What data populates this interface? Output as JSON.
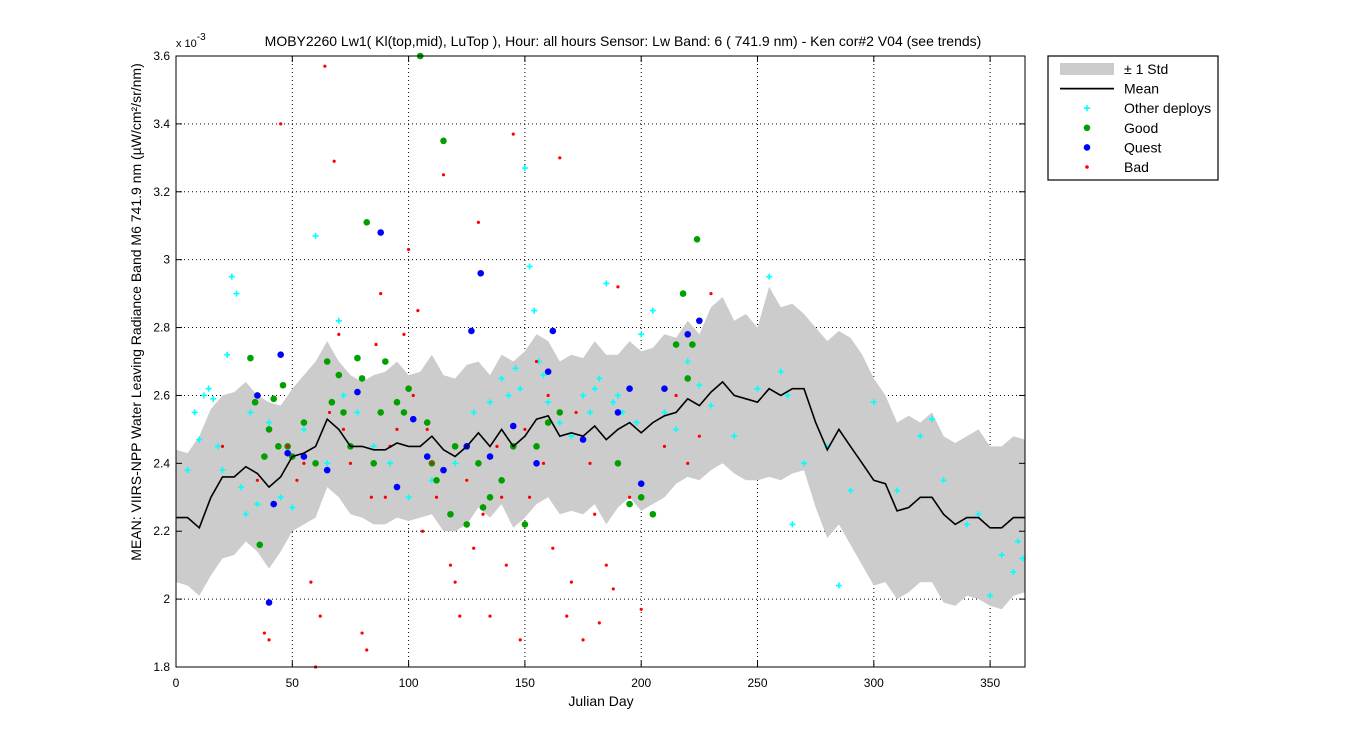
{
  "chart_data": {
    "type": "scatter",
    "title": "MOBY2260   Lw1( Kl(top,mid), LuTop ),   Hour: all hours  Sensor: Lw Band: 6 ( 741.9 nm)  - Ken cor#2 V04 (see trends)",
    "xlabel": "Julian Day",
    "ylabel": "MEAN: VIIRS-NPP Water Leaving Radiance Band M6 741.9 nm (µW/cm²/sr/nm)",
    "y_exponent_label": "x 10",
    "y_exponent_power": "-3",
    "xlim": [
      0,
      365
    ],
    "ylim": [
      1.8,
      3.6
    ],
    "x_ticks": [
      0,
      50,
      100,
      150,
      200,
      250,
      300,
      350
    ],
    "x_tick_labels": [
      "0",
      "50",
      "100",
      "150",
      "200",
      "250",
      "300",
      "350"
    ],
    "y_ticks": [
      1.8,
      2.0,
      2.2,
      2.4,
      2.6,
      2.8,
      3.0,
      3.2,
      3.4,
      3.6
    ],
    "y_tick_labels": [
      "1.8",
      "2",
      "2.2",
      "2.4",
      "2.6",
      "2.8",
      "3",
      "3.2",
      "3.4",
      "3.6"
    ],
    "grid": true,
    "legend_position": "outside-top-right",
    "legend": [
      {
        "label": "± 1 Std",
        "kind": "band",
        "color": "#cccccc"
      },
      {
        "label": "Mean",
        "kind": "line",
        "color": "#000000"
      },
      {
        "label": "Other deploys",
        "kind": "plus",
        "color": "#00ffff"
      },
      {
        "label": "Good",
        "kind": "dot",
        "color": "#00a000"
      },
      {
        "label": "Quest",
        "kind": "dot",
        "color": "#0000ff"
      },
      {
        "label": "Bad",
        "kind": "dot-small",
        "color": "#ff0000"
      }
    ],
    "mean_series": {
      "name": "Mean",
      "x": [
        0,
        5,
        10,
        15,
        20,
        25,
        30,
        35,
        40,
        45,
        50,
        55,
        60,
        65,
        70,
        75,
        80,
        85,
        90,
        95,
        100,
        105,
        110,
        115,
        120,
        125,
        130,
        135,
        140,
        145,
        150,
        155,
        160,
        165,
        170,
        175,
        180,
        185,
        190,
        195,
        200,
        205,
        210,
        215,
        220,
        225,
        230,
        235,
        240,
        245,
        250,
        255,
        260,
        265,
        270,
        275,
        280,
        285,
        290,
        295,
        300,
        305,
        310,
        315,
        320,
        325,
        330,
        335,
        340,
        345,
        350,
        355,
        360,
        365
      ],
      "y": [
        2.24,
        2.24,
        2.21,
        2.3,
        2.36,
        2.36,
        2.39,
        2.37,
        2.33,
        2.36,
        2.42,
        2.43,
        2.45,
        2.53,
        2.5,
        2.45,
        2.45,
        2.44,
        2.44,
        2.46,
        2.45,
        2.45,
        2.48,
        2.44,
        2.42,
        2.45,
        2.49,
        2.45,
        2.5,
        2.45,
        2.48,
        2.53,
        2.54,
        2.48,
        2.49,
        2.48,
        2.51,
        2.47,
        2.5,
        2.52,
        2.49,
        2.52,
        2.54,
        2.55,
        2.59,
        2.57,
        2.61,
        2.64,
        2.6,
        2.59,
        2.58,
        2.62,
        2.6,
        2.62,
        2.62,
        2.52,
        2.44,
        2.5,
        2.45,
        2.4,
        2.35,
        2.34,
        2.26,
        2.27,
        2.3,
        2.3,
        2.25,
        2.22,
        2.24,
        2.24,
        2.21,
        2.21,
        2.24,
        2.24
      ]
    },
    "std_upper": [
      2.44,
      2.43,
      2.48,
      2.56,
      2.6,
      2.61,
      2.64,
      2.6,
      2.58,
      2.57,
      2.62,
      2.66,
      2.7,
      2.76,
      2.7,
      2.66,
      2.64,
      2.66,
      2.67,
      2.7,
      2.66,
      2.67,
      2.72,
      2.66,
      2.65,
      2.69,
      2.7,
      2.66,
      2.72,
      2.7,
      2.73,
      2.78,
      2.76,
      2.7,
      2.72,
      2.71,
      2.76,
      2.72,
      2.72,
      2.76,
      2.73,
      2.74,
      2.78,
      2.77,
      2.82,
      2.78,
      2.86,
      2.89,
      2.82,
      2.84,
      2.8,
      2.92,
      2.86,
      2.87,
      2.84,
      2.8,
      2.76,
      2.79,
      2.77,
      2.72,
      2.65,
      2.6,
      2.52,
      2.54,
      2.52,
      2.55,
      2.48,
      2.46,
      2.48,
      2.5,
      2.45,
      2.45,
      2.48,
      2.47
    ],
    "std_lower": [
      2.05,
      2.04,
      2.01,
      2.07,
      2.12,
      2.13,
      2.17,
      2.14,
      2.09,
      2.14,
      2.2,
      2.22,
      2.24,
      2.33,
      2.3,
      2.25,
      2.24,
      2.22,
      2.22,
      2.24,
      2.23,
      2.24,
      2.25,
      2.2,
      2.2,
      2.22,
      2.27,
      2.24,
      2.28,
      2.21,
      2.24,
      2.28,
      2.3,
      2.25,
      2.26,
      2.25,
      2.28,
      2.22,
      2.27,
      2.3,
      2.26,
      2.28,
      2.3,
      2.34,
      2.36,
      2.35,
      2.38,
      2.4,
      2.37,
      2.35,
      2.35,
      2.36,
      2.35,
      2.37,
      2.38,
      2.27,
      2.18,
      2.22,
      2.16,
      2.1,
      2.04,
      2.05,
      2.0,
      2.02,
      2.05,
      2.05,
      1.99,
      1.98,
      2.01,
      2.0,
      1.98,
      1.97,
      2.01,
      2.02
    ],
    "series": [
      {
        "name": "Other deploys",
        "marker": "plus",
        "color": "#00ffff",
        "x": [
          5,
          8,
          10,
          12,
          14,
          16,
          18,
          20,
          22,
          24,
          26,
          28,
          30,
          32,
          35,
          40,
          45,
          50,
          55,
          60,
          65,
          70,
          72,
          78,
          85,
          92,
          100,
          110,
          120,
          128,
          135,
          140,
          143,
          146,
          148,
          150,
          152,
          154,
          156,
          158,
          160,
          165,
          170,
          175,
          178,
          180,
          182,
          185,
          188,
          190,
          192,
          195,
          198,
          200,
          205,
          210,
          215,
          220,
          225,
          230,
          240,
          250,
          255,
          260,
          263,
          265,
          270,
          280,
          285,
          290,
          300,
          310,
          320,
          325,
          330,
          340,
          345,
          350,
          355,
          360,
          362,
          364
        ],
        "y": [
          2.38,
          2.55,
          2.47,
          2.6,
          2.62,
          2.59,
          2.45,
          2.38,
          2.72,
          2.95,
          2.9,
          2.33,
          2.25,
          2.55,
          2.28,
          2.52,
          2.3,
          2.27,
          2.5,
          3.07,
          2.4,
          2.82,
          2.6,
          2.55,
          2.45,
          2.4,
          2.3,
          2.35,
          2.4,
          2.55,
          2.58,
          2.65,
          2.6,
          2.68,
          2.62,
          3.27,
          2.98,
          2.85,
          2.7,
          2.66,
          2.58,
          2.52,
          2.48,
          2.6,
          2.55,
          2.62,
          2.65,
          2.93,
          2.58,
          2.6,
          2.55,
          2.62,
          2.52,
          2.78,
          2.85,
          2.55,
          2.5,
          2.7,
          2.63,
          2.57,
          2.48,
          2.62,
          2.95,
          2.67,
          2.6,
          2.22,
          2.4,
          2.45,
          2.04,
          2.32,
          2.58,
          2.32,
          2.48,
          2.53,
          2.35,
          2.22,
          2.25,
          2.01,
          2.13,
          2.08,
          2.17,
          2.12
        ]
      },
      {
        "name": "Good",
        "marker": "dot",
        "color": "#00a000",
        "x": [
          32,
          34,
          36,
          38,
          40,
          42,
          44,
          46,
          48,
          50,
          55,
          60,
          65,
          67,
          70,
          72,
          75,
          78,
          80,
          82,
          85,
          88,
          90,
          95,
          98,
          100,
          105,
          108,
          110,
          112,
          115,
          118,
          120,
          125,
          130,
          132,
          135,
          140,
          145,
          150,
          155,
          160,
          165,
          190,
          195,
          200,
          205,
          215,
          218,
          220,
          222,
          224
        ],
        "y": [
          2.71,
          2.58,
          2.16,
          2.42,
          2.5,
          2.59,
          2.45,
          2.63,
          2.45,
          2.42,
          2.52,
          2.4,
          2.7,
          2.58,
          2.66,
          2.55,
          2.45,
          2.71,
          2.65,
          3.11,
          2.4,
          2.55,
          2.7,
          2.58,
          2.55,
          2.62,
          3.6,
          2.52,
          2.4,
          2.35,
          3.35,
          2.25,
          2.45,
          2.22,
          2.4,
          2.27,
          2.3,
          2.35,
          2.45,
          2.22,
          2.45,
          2.52,
          2.55,
          2.4,
          2.28,
          2.3,
          2.25,
          2.75,
          2.9,
          2.65,
          2.75,
          3.06
        ]
      },
      {
        "name": "Quest",
        "marker": "dot",
        "color": "#0000ff",
        "x": [
          35,
          40,
          42,
          45,
          48,
          55,
          65,
          78,
          88,
          95,
          102,
          108,
          115,
          125,
          127,
          131,
          135,
          145,
          155,
          160,
          162,
          175,
          190,
          195,
          200,
          210,
          220,
          225
        ],
        "y": [
          2.6,
          1.99,
          2.28,
          2.72,
          2.43,
          2.42,
          2.38,
          2.61,
          3.08,
          2.33,
          2.53,
          2.42,
          2.38,
          2.45,
          2.79,
          2.96,
          2.42,
          2.51,
          2.4,
          2.67,
          2.79,
          2.47,
          2.55,
          2.62,
          2.34,
          2.62,
          2.78,
          2.82
        ]
      },
      {
        "name": "Bad",
        "marker": "dot-small",
        "color": "#ff0000",
        "x": [
          20,
          35,
          38,
          40,
          45,
          48,
          52,
          55,
          58,
          60,
          62,
          64,
          66,
          68,
          70,
          72,
          75,
          80,
          82,
          84,
          86,
          88,
          90,
          92,
          95,
          98,
          100,
          102,
          104,
          106,
          108,
          110,
          112,
          115,
          118,
          120,
          122,
          125,
          128,
          130,
          132,
          135,
          138,
          140,
          142,
          145,
          148,
          150,
          152,
          155,
          158,
          160,
          162,
          165,
          168,
          170,
          172,
          175,
          178,
          180,
          182,
          185,
          188,
          190,
          195,
          200,
          210,
          215,
          220,
          225,
          230
        ],
        "y": [
          2.45,
          2.35,
          1.9,
          1.88,
          3.4,
          2.45,
          2.35,
          2.4,
          2.05,
          1.8,
          1.95,
          3.57,
          2.55,
          3.29,
          2.78,
          2.5,
          2.4,
          1.9,
          1.85,
          2.3,
          2.75,
          2.9,
          2.3,
          2.45,
          2.5,
          2.78,
          3.03,
          2.6,
          2.85,
          2.2,
          2.5,
          2.4,
          2.3,
          3.25,
          2.1,
          2.05,
          1.95,
          2.35,
          2.15,
          3.11,
          2.25,
          1.95,
          2.45,
          2.3,
          2.1,
          3.37,
          1.88,
          2.5,
          2.3,
          2.7,
          2.4,
          2.6,
          2.15,
          3.3,
          1.95,
          2.05,
          2.55,
          1.88,
          2.4,
          2.25,
          1.93,
          2.1,
          2.03,
          2.92,
          2.3,
          1.97,
          2.45,
          2.6,
          2.4,
          2.48,
          2.9
        ]
      }
    ]
  }
}
